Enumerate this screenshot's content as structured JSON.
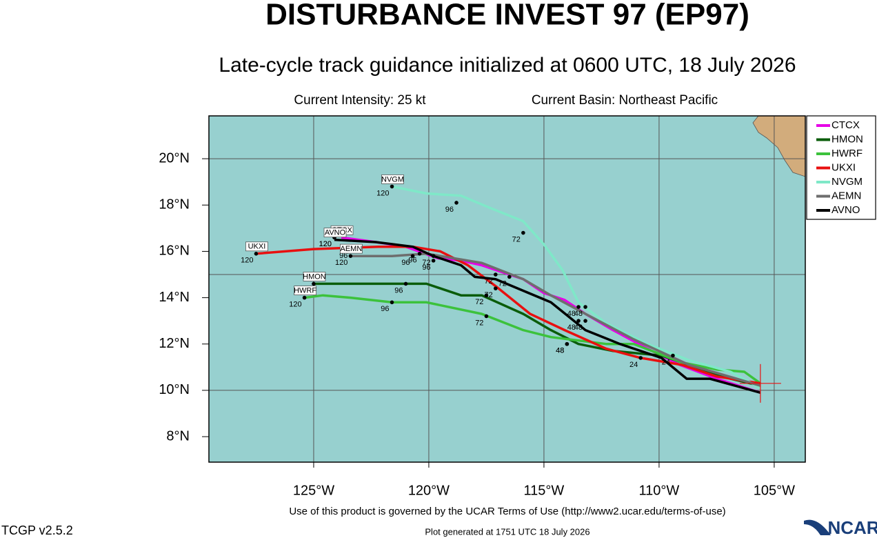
{
  "chart_data": {
    "type": "line",
    "title": "DISTURBANCE INVEST 97 (EP97)",
    "subtitle": "Late-cycle track guidance initialized at 0600 UTC, 18 July 2026",
    "intensity": "Current Intensity: 25 kt",
    "basin": "Current Basin: Northeast Pacific",
    "footer": "Use of this product is governed by the UCAR Terms of Use (http://www2.ucar.edu/terms-of-use)",
    "version": "TCGP v2.5.2",
    "generated": "Plot generated at 1751 UTC   18 July 2026",
    "logo": "NCAR",
    "xlim": [
      -129.55,
      -103.65
    ],
    "ylim": [
      6.9,
      21.85
    ],
    "xticks": [
      {
        "value": -125,
        "label": "125°W"
      },
      {
        "value": -120,
        "label": "120°W"
      },
      {
        "value": -115,
        "label": "115°W"
      },
      {
        "value": -110,
        "label": "110°W"
      },
      {
        "value": -105,
        "label": "105°W"
      }
    ],
    "yticks": [
      {
        "value": 8,
        "label": "8°N"
      },
      {
        "value": 10,
        "label": "10°N"
      },
      {
        "value": 12,
        "label": "12°N"
      },
      {
        "value": 14,
        "label": "14°N"
      },
      {
        "value": 16,
        "label": "16°N"
      },
      {
        "value": 18,
        "label": "18°N"
      },
      {
        "value": 20,
        "label": "20°N"
      }
    ],
    "ygrid": [
      10,
      15,
      20
    ],
    "grid": true,
    "legend": "outside-right",
    "initial_position": {
      "x": -105.6,
      "y": 10.3
    },
    "series": [
      {
        "name": "CTCX",
        "color": "#e600e6",
        "x": [
          -105.6,
          -107.5,
          -109.1,
          -110.5,
          -112.0,
          -113.2,
          -114.1,
          -115.0,
          -115.9,
          -116.8,
          -117.7,
          -118.6,
          -119.6,
          -121.0,
          -122.3,
          -123.8
        ],
        "values": [
          9.9,
          10.5,
          11.1,
          11.8,
          12.6,
          13.3,
          13.9,
          14.2,
          14.8,
          15.1,
          15.4,
          15.6,
          15.7,
          16.2,
          16.4,
          16.6
        ],
        "hour_points": {
          "x": [
            -124.1,
            -119.8,
            -116.5,
            -113.2
          ],
          "y": [
            16.6,
            15.6,
            14.9,
            13.0
          ],
          "labels": [
            120,
            96,
            72,
            48
          ]
        }
      },
      {
        "name": "HMON",
        "color": "#0a5c0a",
        "x": [
          -105.6,
          -106.9,
          -108.7,
          -109.9,
          -112.0,
          -113.5,
          -114.7,
          -115.9,
          -117.7,
          -118.6,
          -120.1,
          -121.0,
          -122.8,
          -125.0
        ],
        "values": [
          10.2,
          10.5,
          11.1,
          11.5,
          11.7,
          12.0,
          12.6,
          13.3,
          14.1,
          14.1,
          14.6,
          14.6,
          14.6,
          14.6
        ],
        "hour_points": {
          "x": [
            -125.0,
            -121.0,
            -117.5,
            -114.0
          ],
          "y": [
            14.6,
            14.6,
            14.1,
            12.0
          ],
          "labels": [
            120,
            96,
            72,
            48
          ]
        }
      },
      {
        "name": "HWRF",
        "color": "#3cc23c",
        "x": [
          -105.6,
          -106.3,
          -107.5,
          -109.0,
          -111.1,
          -112.3,
          -114.7,
          -115.9,
          -117.7,
          -120.1,
          -121.6,
          -123.4,
          -124.6,
          -125.4
        ],
        "values": [
          10.3,
          10.8,
          10.9,
          11.2,
          12.0,
          12.0,
          12.3,
          12.6,
          13.3,
          13.8,
          13.8,
          14.0,
          14.1,
          14.0
        ],
        "hour_points": {
          "x": [
            -125.4,
            -121.6,
            -117.5,
            -114.0,
            -110.8
          ],
          "y": [
            14.0,
            13.8,
            13.2,
            12.0,
            11.4
          ],
          "labels": [
            120,
            96,
            72,
            48,
            24
          ]
        }
      },
      {
        "name": "UKXI",
        "color": "#e81010",
        "x": [
          -105.6,
          -107.5,
          -109.0,
          -110.8,
          -112.3,
          -114.1,
          -115.6,
          -117.1,
          -118.3,
          -119.5,
          -120.7,
          -122.2,
          -125.0,
          -127.5
        ],
        "values": [
          10.3,
          10.6,
          11.1,
          11.4,
          11.8,
          12.6,
          13.3,
          14.5,
          15.4,
          16.0,
          16.2,
          16.2,
          16.1,
          15.9
        ],
        "hour_points": {
          "x": [
            -127.5,
            -123.4,
            -119.8
          ],
          "y": [
            15.9,
            16.1,
            15.8
          ],
          "labels": [
            120,
            96,
            72
          ]
        }
      },
      {
        "name": "NVGM",
        "color": "#7fe8c8",
        "x": [
          -105.6,
          -106.9,
          -108.7,
          -110.5,
          -112.3,
          -113.5,
          -114.2,
          -115.0,
          -115.9,
          -117.4,
          -118.6,
          -120.1,
          -121.6
        ],
        "values": [
          10.1,
          10.8,
          11.3,
          12.0,
          12.9,
          13.8,
          15.2,
          16.3,
          17.3,
          17.9,
          18.4,
          18.5,
          18.8
        ],
        "hour_points": {
          "x": [
            -121.6,
            -118.8,
            -115.9,
            -113.2
          ],
          "y": [
            18.8,
            18.1,
            16.8,
            13.6
          ],
          "labels": [
            120,
            96,
            72,
            48
          ]
        }
      },
      {
        "name": "AEMN",
        "color": "#6e6e6e",
        "x": [
          -105.6,
          -108.7,
          -111.1,
          -113.2,
          -114.7,
          -115.9,
          -117.7,
          -120.1,
          -121.6,
          -123.4
        ],
        "values": [
          10.2,
          11.1,
          12.2,
          13.3,
          14.1,
          14.8,
          15.5,
          15.9,
          15.8,
          15.8
        ],
        "hour_points": {
          "x": [
            -123.4,
            -120.7,
            -117.1,
            -113.5
          ],
          "y": [
            15.8,
            15.8,
            15.0,
            13.0
          ],
          "labels": [
            120,
            96,
            72,
            48
          ]
        }
      },
      {
        "name": "AVNO",
        "color": "#000000",
        "x": [
          -105.6,
          -107.8,
          -108.8,
          -109.9,
          -111.7,
          -113.2,
          -114.7,
          -115.9,
          -117.1,
          -118.0,
          -118.6,
          -119.8,
          -120.7,
          -122.3,
          -124.1
        ],
        "values": [
          9.9,
          10.5,
          10.5,
          11.4,
          12.0,
          12.6,
          13.8,
          14.3,
          14.8,
          14.9,
          15.4,
          15.8,
          16.2,
          16.4,
          16.5
        ],
        "hour_points": {
          "x": [
            -124.1,
            -120.4,
            -117.1,
            -113.5,
            -109.4
          ],
          "y": [
            16.6,
            15.9,
            14.4,
            13.6,
            11.5
          ],
          "labels": [
            120,
            96,
            72,
            48,
            24
          ]
        }
      }
    ]
  }
}
